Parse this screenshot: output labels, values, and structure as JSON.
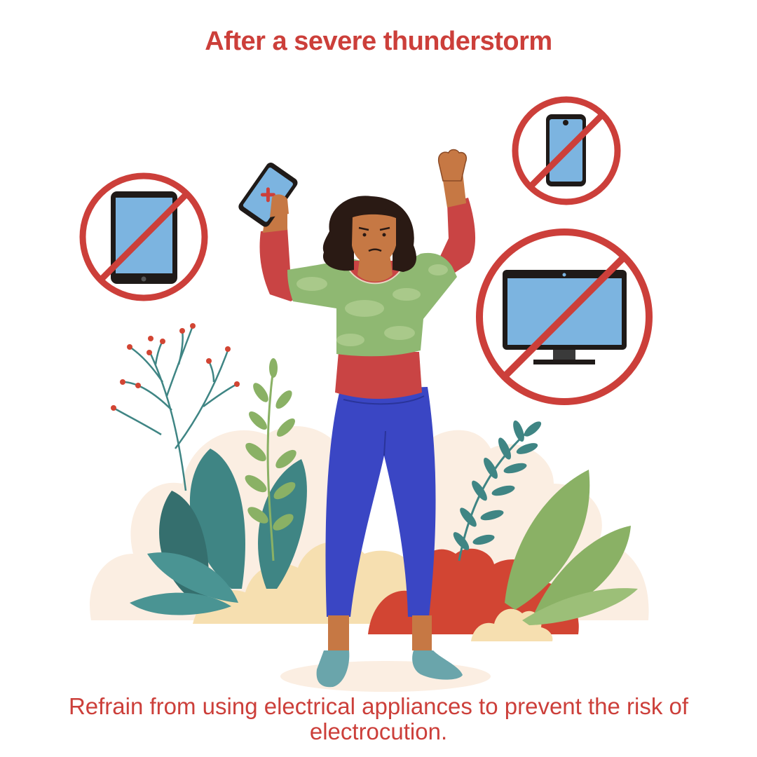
{
  "title": "After a severe thunderstorm",
  "caption": "Refrain from using electrical appliances to prevent the risk of electrocution.",
  "colors": {
    "accent": "#cc3f3a",
    "screen": "#7cb4e0",
    "device_body": "#1f1a18",
    "shirt": "#8fb872",
    "shirt_pattern": "#a9c98a",
    "sleeves": "#c94444",
    "pants": "#3a46c4",
    "skin": "#c67844",
    "hair": "#2a1a14",
    "shoes": "#6aa5ab",
    "leaf_teal": "#3f8584",
    "leaf_green": "#8ab165",
    "bush_cream": "#f6dfb0",
    "bush_peach": "#fbeee2",
    "bush_red": "#d24533"
  },
  "icons": {
    "prohibited_1": "no-tablet-icon",
    "prohibited_2": "no-smartphone-icon",
    "prohibited_3": "no-monitor-icon",
    "held_device": "broken-phone-icon"
  }
}
